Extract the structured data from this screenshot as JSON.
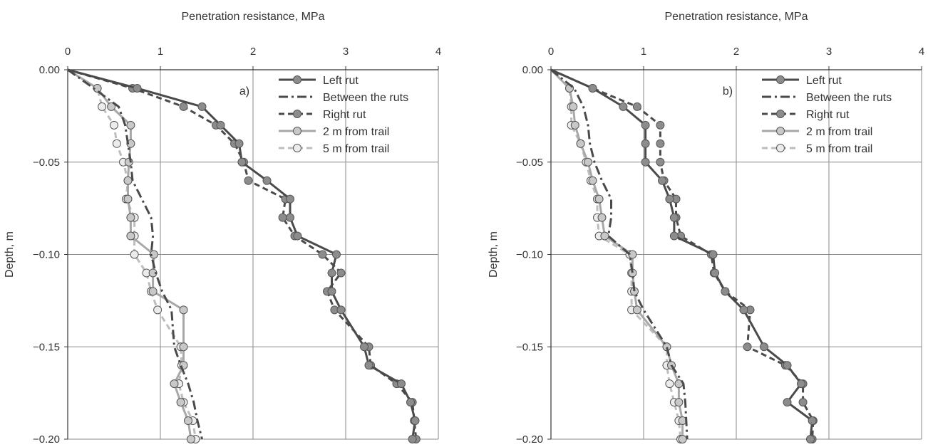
{
  "chart_data": [
    {
      "type": "line",
      "panel_label": "a)",
      "title": "Penetration resistance, MPa",
      "xlabel": "Penetration resistance, MPa",
      "ylabel": "Depth, m",
      "xlim": [
        0,
        4
      ],
      "ylim": [
        -0.2,
        0.0
      ],
      "x_ticks": [
        "0",
        "1",
        "2",
        "3",
        "4"
      ],
      "y_ticks": [
        "0.00",
        "−0.05",
        "−0.10",
        "−0.15",
        "−0.20"
      ],
      "grid": true,
      "legend_position": "top-right",
      "series": [
        {
          "name": "Left rut",
          "line_color": "#4a4a4a",
          "marker_color": "#8c8c8c",
          "dash": "solid",
          "marker": true,
          "x": [
            0,
            0.75,
            1.45,
            1.65,
            1.85,
            1.88,
            2.15,
            2.4,
            2.4,
            2.48,
            2.9,
            2.85,
            2.85,
            2.95,
            3.2,
            3.25,
            3.6,
            3.7,
            3.75,
            3.72
          ],
          "y": [
            0,
            -0.01,
            -0.02,
            -0.03,
            -0.04,
            -0.05,
            -0.06,
            -0.07,
            -0.08,
            -0.09,
            -0.1,
            -0.11,
            -0.12,
            -0.13,
            -0.15,
            -0.16,
            -0.17,
            -0.18,
            -0.19,
            -0.2
          ]
        },
        {
          "name": "Between the ruts",
          "line_color": "#4a4a4a",
          "marker_color": "",
          "dash": "dashdot",
          "marker": false,
          "x": [
            0,
            0.28,
            0.55,
            0.62,
            0.65,
            0.68,
            0.7,
            0.8,
            0.9,
            0.92,
            0.9,
            0.95,
            1.02,
            1.12,
            1.15,
            1.22,
            1.3,
            1.36,
            1.4,
            1.45
          ],
          "y": [
            0,
            -0.01,
            -0.02,
            -0.03,
            -0.04,
            -0.05,
            -0.06,
            -0.07,
            -0.08,
            -0.09,
            -0.1,
            -0.11,
            -0.12,
            -0.13,
            -0.15,
            -0.16,
            -0.17,
            -0.18,
            -0.19,
            -0.2
          ]
        },
        {
          "name": "Right rut",
          "line_color": "#4a4a4a",
          "marker_color": "#8c8c8c",
          "dash": "dash",
          "marker": true,
          "x": [
            0,
            0.7,
            1.25,
            1.6,
            1.8,
            1.9,
            1.95,
            2.35,
            2.32,
            2.45,
            2.75,
            2.95,
            2.8,
            2.88,
            3.25,
            3.27,
            3.55,
            3.72,
            3.74,
            3.76
          ],
          "y": [
            0,
            -0.01,
            -0.02,
            -0.03,
            -0.04,
            -0.05,
            -0.06,
            -0.07,
            -0.08,
            -0.09,
            -0.1,
            -0.11,
            -0.12,
            -0.13,
            -0.15,
            -0.16,
            -0.17,
            -0.18,
            -0.19,
            -0.2
          ]
        },
        {
          "name": "2 m from trail",
          "line_color": "#a8a8a8",
          "marker_color": "#c8c8c8",
          "dash": "solid",
          "marker": true,
          "x": [
            0,
            0.32,
            0.47,
            0.68,
            0.68,
            0.66,
            0.65,
            0.65,
            0.68,
            0.68,
            0.93,
            0.92,
            0.92,
            1.25,
            1.25,
            1.25,
            1.15,
            1.22,
            1.3,
            1.33
          ],
          "y": [
            0,
            -0.01,
            -0.02,
            -0.03,
            -0.04,
            -0.05,
            -0.06,
            -0.07,
            -0.08,
            -0.09,
            -0.1,
            -0.11,
            -0.12,
            -0.13,
            -0.15,
            -0.16,
            -0.17,
            -0.18,
            -0.19,
            -0.2
          ]
        },
        {
          "name": "5 m from trail",
          "line_color": "#bdbdbd",
          "marker_color": "#ececec",
          "dash": "dash",
          "marker": true,
          "x": [
            0,
            0.32,
            0.37,
            0.5,
            0.53,
            0.6,
            0.65,
            0.63,
            0.72,
            0.72,
            0.72,
            0.85,
            0.9,
            0.97,
            1.22,
            1.23,
            1.2,
            1.25,
            1.35,
            1.38
          ],
          "y": [
            0,
            -0.01,
            -0.02,
            -0.03,
            -0.04,
            -0.05,
            -0.06,
            -0.07,
            -0.08,
            -0.09,
            -0.1,
            -0.11,
            -0.12,
            -0.13,
            -0.15,
            -0.16,
            -0.17,
            -0.18,
            -0.19,
            -0.2
          ]
        }
      ]
    },
    {
      "type": "line",
      "panel_label": "b)",
      "title": "Penetration resistance, MPa",
      "xlabel": "Penetration resistance, MPa",
      "ylabel": "Depth, m",
      "xlim": [
        0,
        4
      ],
      "ylim": [
        -0.2,
        0.0
      ],
      "x_ticks": [
        "0",
        "1",
        "2",
        "3",
        "4"
      ],
      "y_ticks": [
        "0.00",
        "−0.05",
        "−0.10",
        "−0.15",
        "−0.20"
      ],
      "grid": true,
      "legend_position": "top-right",
      "series": [
        {
          "name": "Left rut",
          "line_color": "#4a4a4a",
          "marker_color": "#8c8c8c",
          "dash": "solid",
          "marker": true,
          "x": [
            0,
            0.45,
            0.78,
            1.02,
            1.02,
            1.02,
            1.2,
            1.28,
            1.33,
            1.33,
            1.75,
            1.77,
            1.88,
            2.08,
            2.3,
            2.55,
            2.7,
            2.55,
            2.82,
            2.8
          ],
          "y": [
            0,
            -0.01,
            -0.02,
            -0.03,
            -0.04,
            -0.05,
            -0.06,
            -0.07,
            -0.08,
            -0.09,
            -0.1,
            -0.11,
            -0.12,
            -0.13,
            -0.15,
            -0.16,
            -0.17,
            -0.18,
            -0.19,
            -0.2
          ]
        },
        {
          "name": "Between the ruts",
          "line_color": "#4a4a4a",
          "marker_color": "",
          "dash": "dashdot",
          "marker": false,
          "x": [
            0,
            0.25,
            0.35,
            0.4,
            0.42,
            0.47,
            0.55,
            0.65,
            0.65,
            0.62,
            0.85,
            0.88,
            0.9,
            1.0,
            1.25,
            1.3,
            1.43,
            1.45,
            1.46,
            1.47
          ],
          "y": [
            0,
            -0.01,
            -0.02,
            -0.03,
            -0.04,
            -0.05,
            -0.06,
            -0.07,
            -0.08,
            -0.09,
            -0.1,
            -0.11,
            -0.12,
            -0.13,
            -0.15,
            -0.16,
            -0.17,
            -0.18,
            -0.19,
            -0.2
          ]
        },
        {
          "name": "Right rut",
          "line_color": "#4a4a4a",
          "marker_color": "#8c8c8c",
          "dash": "dash",
          "marker": true,
          "x": [
            0,
            0.45,
            0.93,
            1.18,
            1.18,
            1.18,
            1.22,
            1.35,
            1.35,
            1.4,
            1.73,
            1.76,
            1.88,
            2.15,
            2.12,
            2.53,
            2.72,
            2.72,
            2.83,
            2.82
          ],
          "y": [
            0,
            -0.01,
            -0.02,
            -0.03,
            -0.04,
            -0.05,
            -0.06,
            -0.07,
            -0.08,
            -0.09,
            -0.1,
            -0.11,
            -0.12,
            -0.13,
            -0.15,
            -0.16,
            -0.17,
            -0.18,
            -0.19,
            -0.2
          ]
        },
        {
          "name": "2 m from trail",
          "line_color": "#a8a8a8",
          "marker_color": "#c8c8c8",
          "dash": "solid",
          "marker": true,
          "x": [
            0,
            0.2,
            0.24,
            0.26,
            0.32,
            0.4,
            0.45,
            0.52,
            0.55,
            0.58,
            0.88,
            0.88,
            0.9,
            0.93,
            1.25,
            1.3,
            1.38,
            1.38,
            1.42,
            1.42
          ],
          "y": [
            0,
            -0.01,
            -0.02,
            -0.03,
            -0.04,
            -0.05,
            -0.06,
            -0.07,
            -0.08,
            -0.09,
            -0.1,
            -0.11,
            -0.12,
            -0.13,
            -0.15,
            -0.16,
            -0.17,
            -0.18,
            -0.19,
            -0.2
          ]
        },
        {
          "name": "5 m from trail",
          "line_color": "#bdbdbd",
          "marker_color": "#ececec",
          "dash": "dash",
          "marker": true,
          "x": [
            0,
            0.2,
            0.22,
            0.22,
            0.32,
            0.38,
            0.43,
            0.5,
            0.5,
            0.52,
            0.85,
            0.87,
            0.87,
            0.87,
            1.25,
            1.25,
            1.28,
            1.33,
            1.38,
            1.4
          ],
          "y": [
            0,
            -0.01,
            -0.02,
            -0.03,
            -0.04,
            -0.05,
            -0.06,
            -0.07,
            -0.08,
            -0.09,
            -0.1,
            -0.11,
            -0.12,
            -0.13,
            -0.15,
            -0.16,
            -0.17,
            -0.18,
            -0.19,
            -0.2
          ]
        }
      ]
    }
  ]
}
